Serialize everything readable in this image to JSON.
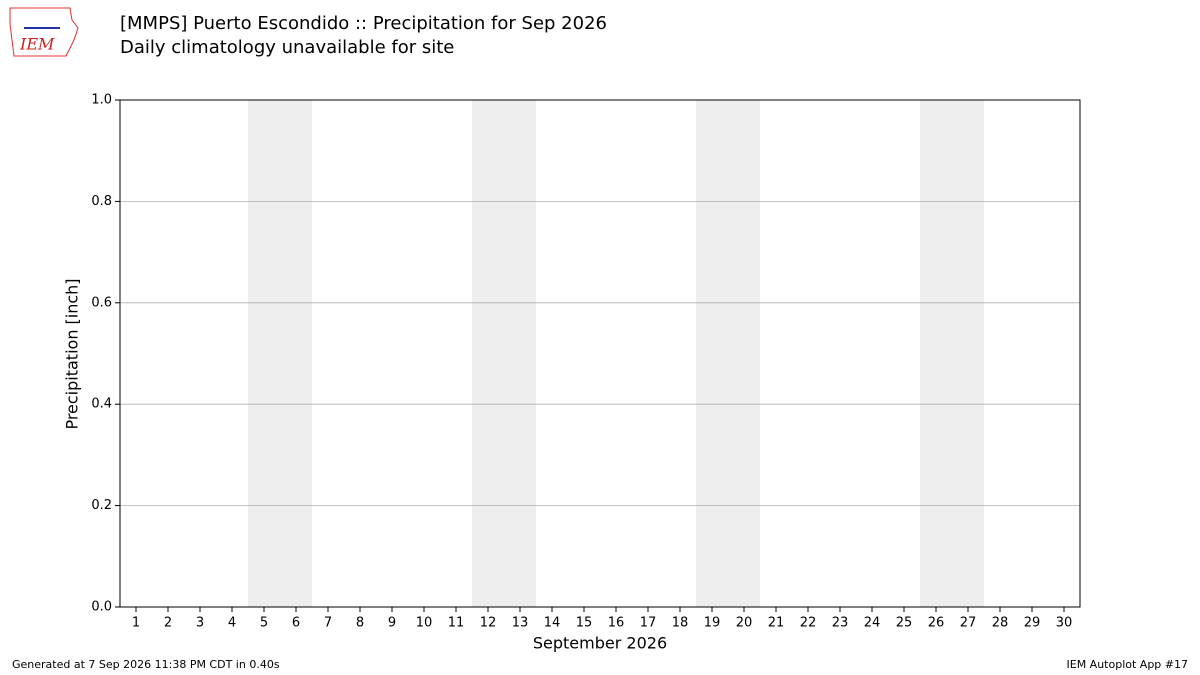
{
  "chart_data": {
    "type": "bar",
    "title": "[MMPS] Puerto Escondido :: Precipitation for Sep 2026",
    "subtitle": "Daily climatology unavailable for site",
    "x_label": "September 2026",
    "y_label": "Precipitation [inch]",
    "xlim": [
      0.5,
      30.5
    ],
    "xticks": [
      1,
      2,
      3,
      4,
      5,
      6,
      7,
      8,
      9,
      10,
      11,
      12,
      13,
      14,
      15,
      16,
      17,
      18,
      19,
      20,
      21,
      22,
      23,
      24,
      25,
      26,
      27,
      28,
      29,
      30
    ],
    "ylim": [
      0,
      1
    ],
    "yticks": [
      {
        "value": 0,
        "label": "0.0"
      },
      0.2,
      0.4,
      0.6,
      0.8,
      {
        "value": 1,
        "label": "1.0"
      }
    ],
    "grid": true,
    "shaded_spans": [
      [
        5,
        6
      ],
      [
        12,
        13
      ],
      [
        19,
        20
      ],
      [
        26,
        27
      ]
    ],
    "shade_color": "#eeeeee"
  },
  "logo": "IEM",
  "footer": {
    "left": "Generated at 7 Sep 2026 11:38 PM CDT in 0.40s",
    "right": "IEM Autoplot App #17"
  }
}
